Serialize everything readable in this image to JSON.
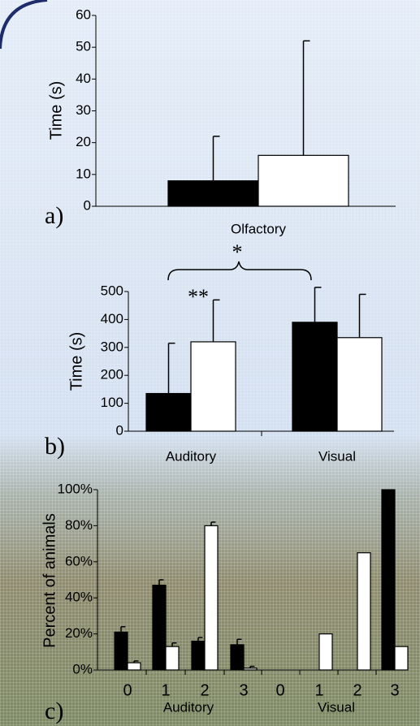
{
  "chart_data": [
    {
      "type": "bar",
      "panel_label": "a)",
      "y_label": "Time (s)",
      "categories": [
        "Olfactory"
      ],
      "series": [
        {
          "color": "#000000",
          "values": [
            8
          ],
          "errors": [
            14
          ]
        },
        {
          "color": "#ffffff",
          "values": [
            16
          ],
          "errors": [
            36
          ]
        }
      ],
      "ylim": [
        0,
        60
      ],
      "yticks": [
        0,
        10,
        20,
        30,
        40,
        50,
        60
      ]
    },
    {
      "type": "bar",
      "panel_label": "b)",
      "y_label": "Time (s)",
      "categories": [
        "Auditory",
        "Visual"
      ],
      "series": [
        {
          "color": "#000000",
          "values": [
            135,
            390
          ],
          "errors": [
            180,
            125
          ]
        },
        {
          "color": "#ffffff",
          "values": [
            320,
            335
          ],
          "errors": [
            150,
            155
          ]
        }
      ],
      "ylim": [
        0,
        500
      ],
      "yticks": [
        0,
        100,
        200,
        300,
        400,
        500
      ],
      "annotations": [
        "**",
        "*"
      ]
    },
    {
      "type": "bar",
      "panel_label": "c)",
      "y_label": "Percent of animals",
      "categories": [
        "0",
        "1",
        "2",
        "3",
        "0",
        "1",
        "2",
        "3"
      ],
      "group_labels": [
        "Auditory",
        "Visual"
      ],
      "series": [
        {
          "color": "#000000",
          "values": [
            21,
            47,
            16,
            14,
            0,
            0,
            0,
            100
          ],
          "errors": [
            3,
            3,
            2,
            3,
            null,
            null,
            null,
            null
          ]
        },
        {
          "color": "#ffffff",
          "values": [
            4,
            13,
            80,
            1,
            0,
            20,
            65,
            13
          ],
          "errors": [
            1,
            2,
            2,
            1,
            null,
            null,
            null,
            null
          ]
        }
      ],
      "ylim": [
        0,
        100
      ],
      "yticks": [
        {
          "value": 0,
          "label": "0%"
        },
        {
          "value": 20,
          "label": "20%"
        },
        {
          "value": 40,
          "label": "40%"
        },
        {
          "value": 60,
          "label": "60%"
        },
        {
          "value": 80,
          "label": "80%"
        },
        {
          "value": 100,
          "label": "100%"
        }
      ]
    }
  ]
}
